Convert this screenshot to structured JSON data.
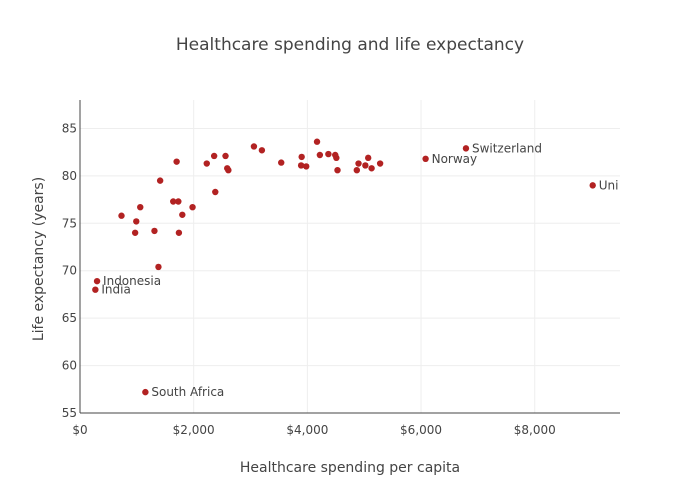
{
  "chart_data": {
    "type": "scatter",
    "title": "Healthcare spending and life expectancy",
    "xlabel": "Healthcare spending per capita",
    "ylabel": "Life expectancy (years)",
    "xlim": [
      0,
      9500
    ],
    "ylim": [
      55,
      88
    ],
    "x_ticks": [
      0,
      2000,
      4000,
      6000,
      8000
    ],
    "x_tick_labels": [
      "$0",
      "$2,000",
      "$4,000",
      "$6,000",
      "$8,000"
    ],
    "y_ticks": [
      55,
      60,
      65,
      70,
      75,
      80,
      85
    ],
    "y_tick_labels": [
      "55",
      "60",
      "65",
      "70",
      "75",
      "80",
      "85"
    ],
    "grid": true,
    "marker_color": "#b22222",
    "points": [
      {
        "x": 270,
        "y": 68.0,
        "label": "India"
      },
      {
        "x": 300,
        "y": 68.9,
        "label": "Indonesia"
      },
      {
        "x": 1150,
        "y": 57.2,
        "label": "South Africa"
      },
      {
        "x": 6080,
        "y": 81.8,
        "label": "Norway"
      },
      {
        "x": 6790,
        "y": 82.9,
        "label": "Switzerland"
      },
      {
        "x": 9020,
        "y": 79.0,
        "label": "Uni"
      },
      {
        "x": 730,
        "y": 75.8,
        "label": ""
      },
      {
        "x": 970,
        "y": 74.0,
        "label": ""
      },
      {
        "x": 990,
        "y": 75.2,
        "label": ""
      },
      {
        "x": 1060,
        "y": 76.7,
        "label": ""
      },
      {
        "x": 1310,
        "y": 74.2,
        "label": ""
      },
      {
        "x": 1380,
        "y": 70.4,
        "label": ""
      },
      {
        "x": 1410,
        "y": 79.5,
        "label": ""
      },
      {
        "x": 1640,
        "y": 77.3,
        "label": ""
      },
      {
        "x": 1700,
        "y": 81.5,
        "label": ""
      },
      {
        "x": 1730,
        "y": 77.3,
        "label": ""
      },
      {
        "x": 1740,
        "y": 74.0,
        "label": ""
      },
      {
        "x": 1800,
        "y": 75.9,
        "label": ""
      },
      {
        "x": 1980,
        "y": 76.7,
        "label": ""
      },
      {
        "x": 2230,
        "y": 81.3,
        "label": ""
      },
      {
        "x": 2360,
        "y": 82.1,
        "label": ""
      },
      {
        "x": 2380,
        "y": 78.3,
        "label": ""
      },
      {
        "x": 2560,
        "y": 82.1,
        "label": ""
      },
      {
        "x": 2590,
        "y": 80.8,
        "label": ""
      },
      {
        "x": 2610,
        "y": 80.6,
        "label": ""
      },
      {
        "x": 3060,
        "y": 83.1,
        "label": ""
      },
      {
        "x": 3200,
        "y": 82.7,
        "label": ""
      },
      {
        "x": 3540,
        "y": 81.4,
        "label": ""
      },
      {
        "x": 3890,
        "y": 81.1,
        "label": ""
      },
      {
        "x": 3900,
        "y": 82.0,
        "label": ""
      },
      {
        "x": 3980,
        "y": 81.0,
        "label": ""
      },
      {
        "x": 4170,
        "y": 83.6,
        "label": ""
      },
      {
        "x": 4220,
        "y": 82.2,
        "label": ""
      },
      {
        "x": 4370,
        "y": 82.3,
        "label": ""
      },
      {
        "x": 4490,
        "y": 82.2,
        "label": ""
      },
      {
        "x": 4510,
        "y": 81.9,
        "label": ""
      },
      {
        "x": 4530,
        "y": 80.6,
        "label": ""
      },
      {
        "x": 4870,
        "y": 80.6,
        "label": ""
      },
      {
        "x": 4900,
        "y": 81.3,
        "label": ""
      },
      {
        "x": 5020,
        "y": 81.1,
        "label": ""
      },
      {
        "x": 5070,
        "y": 81.9,
        "label": ""
      },
      {
        "x": 5130,
        "y": 80.8,
        "label": ""
      },
      {
        "x": 5280,
        "y": 81.3,
        "label": ""
      }
    ]
  }
}
